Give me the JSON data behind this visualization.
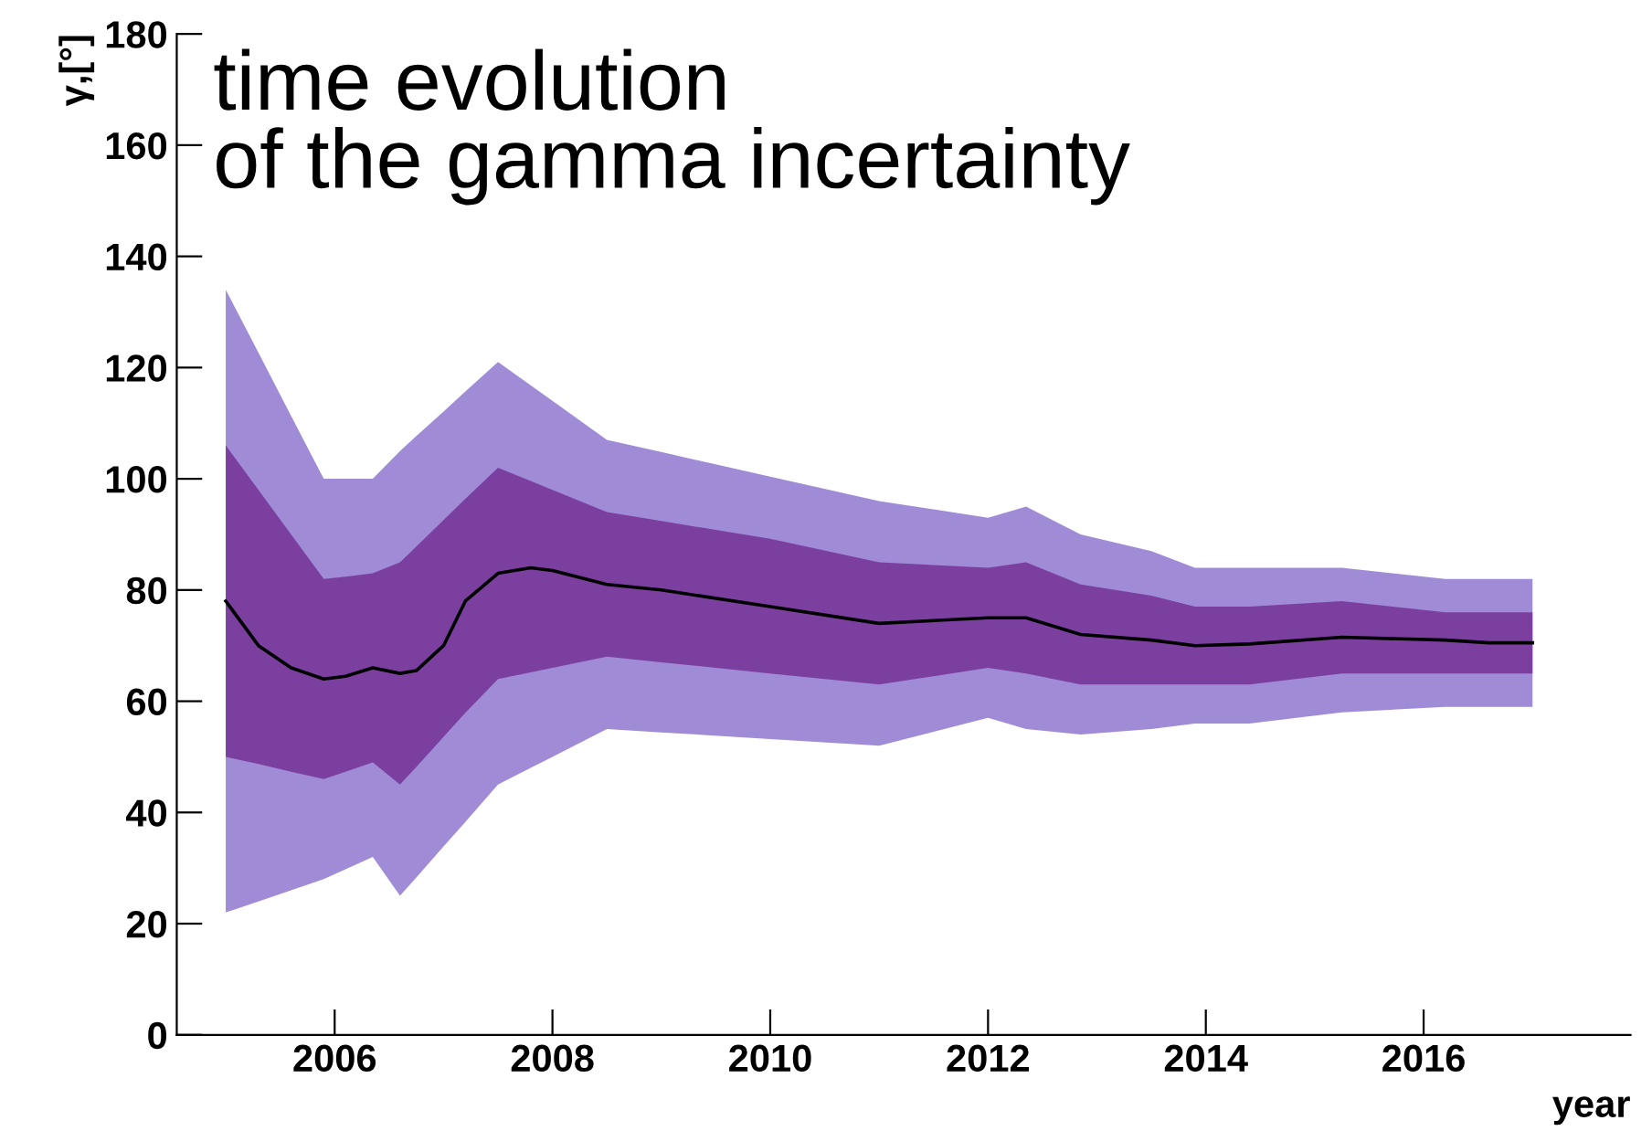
{
  "chart_data": {
    "type": "line",
    "title": "time evolution\nof the gamma incertainty",
    "xlabel": "year",
    "ylabel": "γ,[°]",
    "xlim": [
      2004.55,
      2017.9
    ],
    "ylim": [
      0,
      180
    ],
    "xticks": [
      2006,
      2008,
      2010,
      2012,
      2014,
      2016
    ],
    "yticks": [
      0,
      20,
      40,
      60,
      80,
      100,
      120,
      140,
      160,
      180
    ],
    "grid": false,
    "legend": false,
    "marker": "none",
    "line_style": "solid",
    "x": [
      2005.0,
      2005.3,
      2005.6,
      2005.9,
      2006.1,
      2006.35,
      2006.6,
      2006.75,
      2007.0,
      2007.2,
      2007.5,
      2007.8,
      2008.0,
      2008.5,
      2009.0,
      2010.0,
      2011.0,
      2011.5,
      2012.0,
      2012.35,
      2012.85,
      2013.5,
      2013.9,
      2014.4,
      2015.25,
      2016.2,
      2016.6,
      2017.0
    ],
    "series": [
      {
        "type": "line",
        "color": "#a08bd6",
        "values": [
          null,
          null,
          null,
          null,
          null,
          null,
          null,
          null,
          null,
          null,
          null,
          null,
          null,
          null,
          null,
          null,
          null,
          null,
          null,
          null,
          null,
          null,
          null,
          null,
          null,
          null,
          null,
          null
        ],
        "lower": [
          22,
          24,
          26,
          28,
          29.8,
          32,
          25,
          28.3,
          33.9,
          38.3,
          45,
          48,
          50,
          55,
          54.4,
          53.2,
          52,
          54.5,
          57,
          55,
          54,
          55,
          56,
          56,
          58,
          59,
          59,
          59
        ],
        "upper": [
          134,
          122.7,
          111.3,
          100,
          100,
          100,
          105,
          107.7,
          112.1,
          115.7,
          121,
          116.8,
          114,
          107,
          104.8,
          100.4,
          96,
          94.5,
          93,
          95,
          90,
          87,
          84,
          84,
          84,
          82,
          82,
          82
        ]
      },
      {
        "type": "line",
        "color": "#7b3fa0",
        "values": [
          null,
          null,
          null,
          null,
          null,
          null,
          null,
          null,
          null,
          null,
          null,
          null,
          null,
          null,
          null,
          null,
          null,
          null,
          null,
          null,
          null,
          null,
          null,
          null,
          null,
          null,
          null,
          null
        ],
        "lower": [
          50,
          48.7,
          47.3,
          46,
          47.3,
          49,
          45,
          48.2,
          53.6,
          57.9,
          64,
          65.2,
          66,
          68,
          67,
          65,
          63,
          64.5,
          66,
          65,
          63,
          63,
          63,
          63,
          65,
          65,
          65,
          65
        ],
        "upper": [
          106,
          98,
          90,
          82,
          82.4,
          83,
          85,
          87.8,
          92.6,
          96.4,
          102,
          99.6,
          98,
          94,
          92.4,
          89.2,
          85,
          84.5,
          84,
          85,
          81,
          79,
          77,
          77,
          78,
          76,
          76,
          76
        ]
      },
      {
        "type": "line",
        "color": "#000000",
        "values": [
          78,
          70,
          66,
          64,
          64.5,
          66,
          65,
          65.5,
          70,
          78,
          83,
          84,
          83.5,
          81,
          80,
          77,
          74,
          74.5,
          75,
          75,
          72,
          71,
          70,
          70.3,
          71.5,
          71,
          70.5,
          70.5
        ]
      }
    ]
  }
}
